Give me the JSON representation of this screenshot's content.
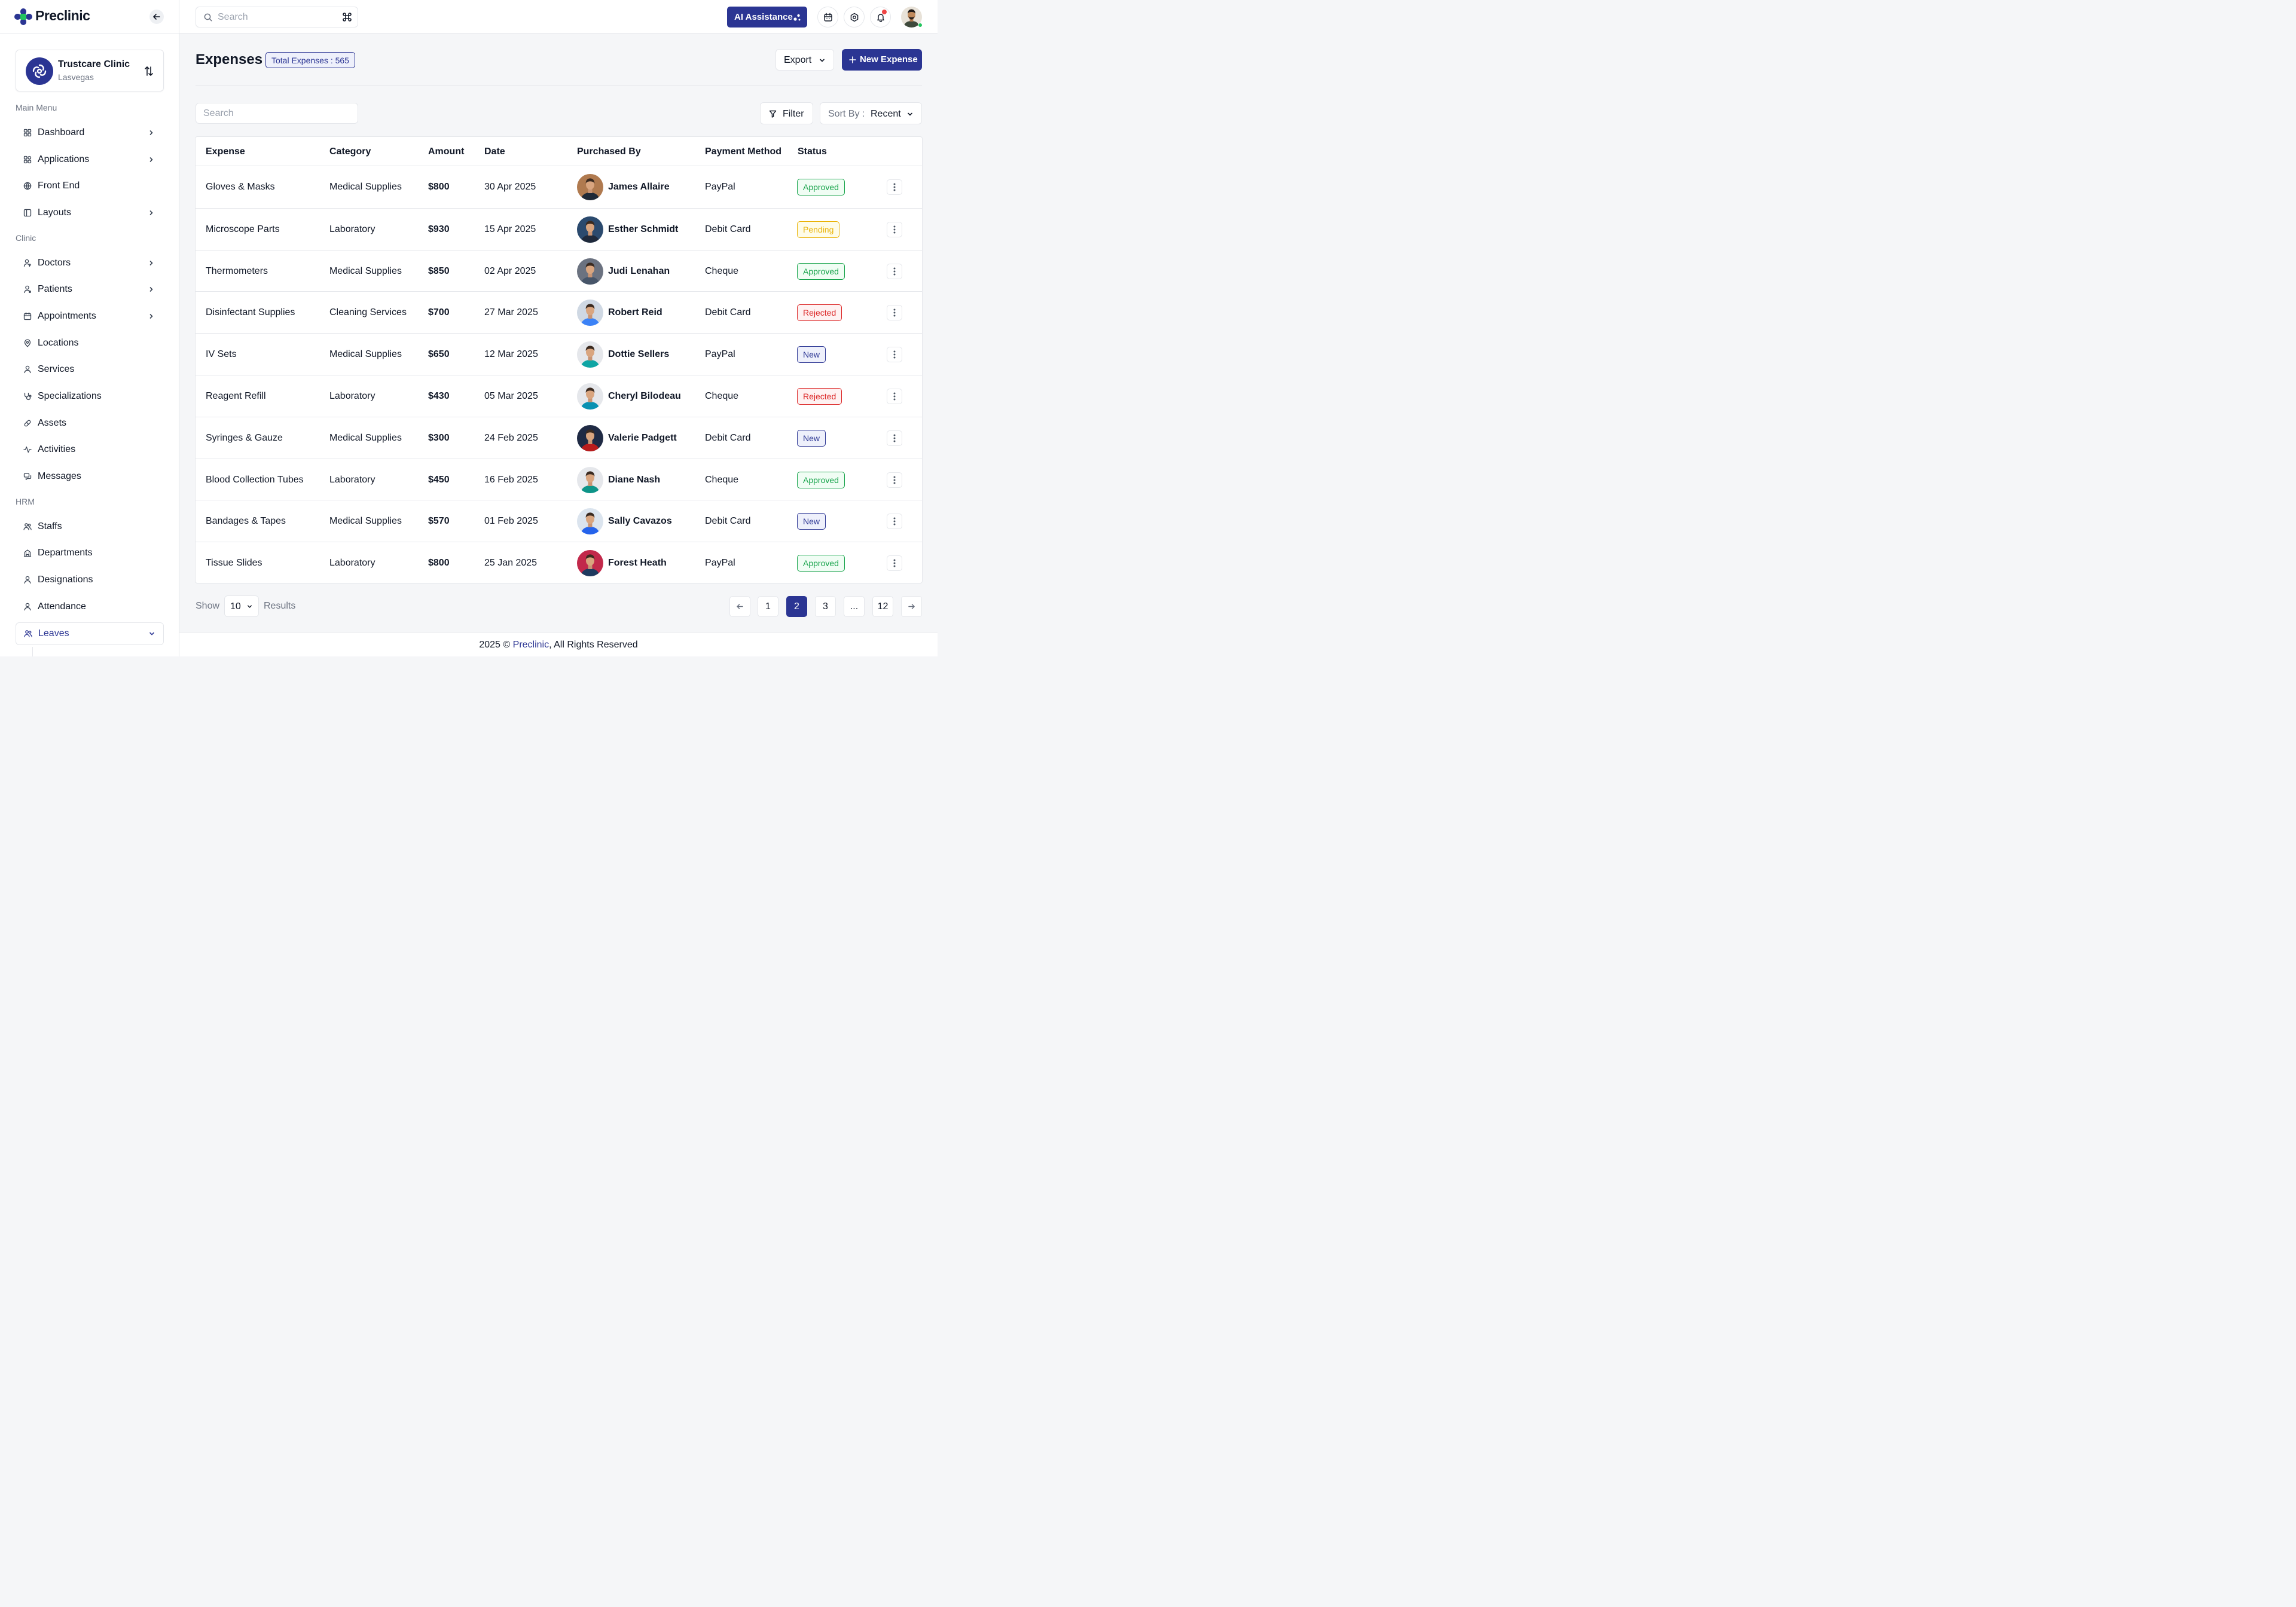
{
  "brand": {
    "name": "Preclinic"
  },
  "clinic": {
    "name": "Trustcare Clinic",
    "location": "Lasvegas"
  },
  "sidebar": {
    "sections": [
      "Main Menu",
      "Clinic",
      "HRM"
    ],
    "items": [
      {
        "label": "Dashboard",
        "icon": "dashboard-icon",
        "chevron": true
      },
      {
        "label": "Applications",
        "icon": "apps-icon",
        "chevron": true
      },
      {
        "label": "Front End",
        "icon": "globe-icon",
        "chevron": false
      },
      {
        "label": "Layouts",
        "icon": "layout-icon",
        "chevron": true
      },
      {
        "label": "Doctors",
        "icon": "doctor-icon",
        "chevron": true
      },
      {
        "label": "Patients",
        "icon": "patient-icon",
        "chevron": true
      },
      {
        "label": "Appointments",
        "icon": "calendar-icon",
        "chevron": true
      },
      {
        "label": "Locations",
        "icon": "map-pin-icon",
        "chevron": false
      },
      {
        "label": "Services",
        "icon": "user-icon",
        "chevron": false
      },
      {
        "label": "Specializations",
        "icon": "stethoscope-icon",
        "chevron": false
      },
      {
        "label": "Assets",
        "icon": "pill-icon",
        "chevron": false
      },
      {
        "label": "Activities",
        "icon": "activity-icon",
        "chevron": false
      },
      {
        "label": "Messages",
        "icon": "message-icon",
        "chevron": false
      },
      {
        "label": "Staffs",
        "icon": "users-icon",
        "chevron": false
      },
      {
        "label": "Departments",
        "icon": "building-icon",
        "chevron": false
      },
      {
        "label": "Designations",
        "icon": "user-icon",
        "chevron": false
      },
      {
        "label": "Attendance",
        "icon": "user-icon",
        "chevron": false
      },
      {
        "label": "Leaves",
        "icon": "users-icon",
        "chevron": true,
        "expanded": true
      }
    ]
  },
  "topbar": {
    "search_placeholder": "Search",
    "shortcut_icon": "command-icon",
    "ai_label": "AI Assistance"
  },
  "page": {
    "title": "Expenses",
    "total_badge": "Total Expenses : 565",
    "export_label": "Export",
    "new_label": "New Expense",
    "search_placeholder": "Search",
    "filter_label": "Filter",
    "sort_label": "Sort By :",
    "sort_value": "Recent"
  },
  "table": {
    "columns": [
      "Expense",
      "Category",
      "Amount",
      "Date",
      "Purchased By",
      "Payment Method",
      "Status"
    ],
    "rows": [
      {
        "expense": "Gloves & Masks",
        "category": "Medical Supplies",
        "amount": "$800",
        "date": "30 Apr 2025",
        "purchased_by": "James Allaire",
        "payment": "PayPal",
        "status": "Approved",
        "avatar_bg": "#b07a4f",
        "shirt": "#1f2937"
      },
      {
        "expense": "Microscope Parts",
        "category": "Laboratory",
        "amount": "$930",
        "date": "15 Apr 2025",
        "purchased_by": "Esther Schmidt",
        "payment": "Debit Card",
        "status": "Pending",
        "avatar_bg": "#2b4a6e",
        "shirt": "#1e293b"
      },
      {
        "expense": "Thermometers",
        "category": "Medical Supplies",
        "amount": "$850",
        "date": "02 Apr 2025",
        "purchased_by": "Judi Lenahan",
        "payment": "Cheque",
        "status": "Approved",
        "avatar_bg": "#6b7280",
        "shirt": "#475569"
      },
      {
        "expense": "Disinfectant Supplies",
        "category": "Cleaning Services",
        "amount": "$700",
        "date": "27 Mar 2025",
        "purchased_by": "Robert Reid",
        "payment": "Debit Card",
        "status": "Rejected",
        "avatar_bg": "#cfd8e3",
        "shirt": "#3b82f6"
      },
      {
        "expense": "IV Sets",
        "category": "Medical Supplies",
        "amount": "$650",
        "date": "12 Mar 2025",
        "purchased_by": "Dottie Sellers",
        "payment": "PayPal",
        "status": "New",
        "avatar_bg": "#e5e7eb",
        "shirt": "#0ea5a4"
      },
      {
        "expense": "Reagent Refill",
        "category": "Laboratory",
        "amount": "$430",
        "date": "05 Mar 2025",
        "purchased_by": "Cheryl Bilodeau",
        "payment": "Cheque",
        "status": "Rejected",
        "avatar_bg": "#e5e7eb",
        "shirt": "#0891b2"
      },
      {
        "expense": "Syringes & Gauze",
        "category": "Medical Supplies",
        "amount": "$300",
        "date": "24 Feb 2025",
        "purchased_by": "Valerie Padgett",
        "payment": "Debit Card",
        "status": "New",
        "avatar_bg": "#1f2a44",
        "shirt": "#b91c1c"
      },
      {
        "expense": "Blood Collection Tubes",
        "category": "Laboratory",
        "amount": "$450",
        "date": "16 Feb 2025",
        "purchased_by": "Diane Nash",
        "payment": "Cheque",
        "status": "Approved",
        "avatar_bg": "#e5e7eb",
        "shirt": "#0d9488"
      },
      {
        "expense": "Bandages & Tapes",
        "category": "Medical Supplies",
        "amount": "$570",
        "date": "01 Feb 2025",
        "purchased_by": "Sally Cavazos",
        "payment": "Debit Card",
        "status": "New",
        "avatar_bg": "#dbe4ee",
        "shirt": "#2563eb"
      },
      {
        "expense": "Tissue Slides",
        "category": "Laboratory",
        "amount": "$800",
        "date": "25 Jan 2025",
        "purchased_by": "Forest Heath",
        "payment": "PayPal",
        "status": "Approved",
        "avatar_bg": "#c2294b",
        "shirt": "#1e3a5f"
      }
    ]
  },
  "pagination": {
    "show_label": "Show",
    "page_size": "10",
    "results_label": "Results",
    "pages": [
      "1",
      "2",
      "3",
      "...",
      "12"
    ],
    "current": "2"
  },
  "footer": {
    "year": "2025 © ",
    "brand": "Preclinic",
    "rights": ", All Rights Reserved"
  },
  "colors": {
    "primary": "#2b3593",
    "approved": "#16a34a",
    "pending": "#eab308",
    "rejected": "#dc2626"
  }
}
